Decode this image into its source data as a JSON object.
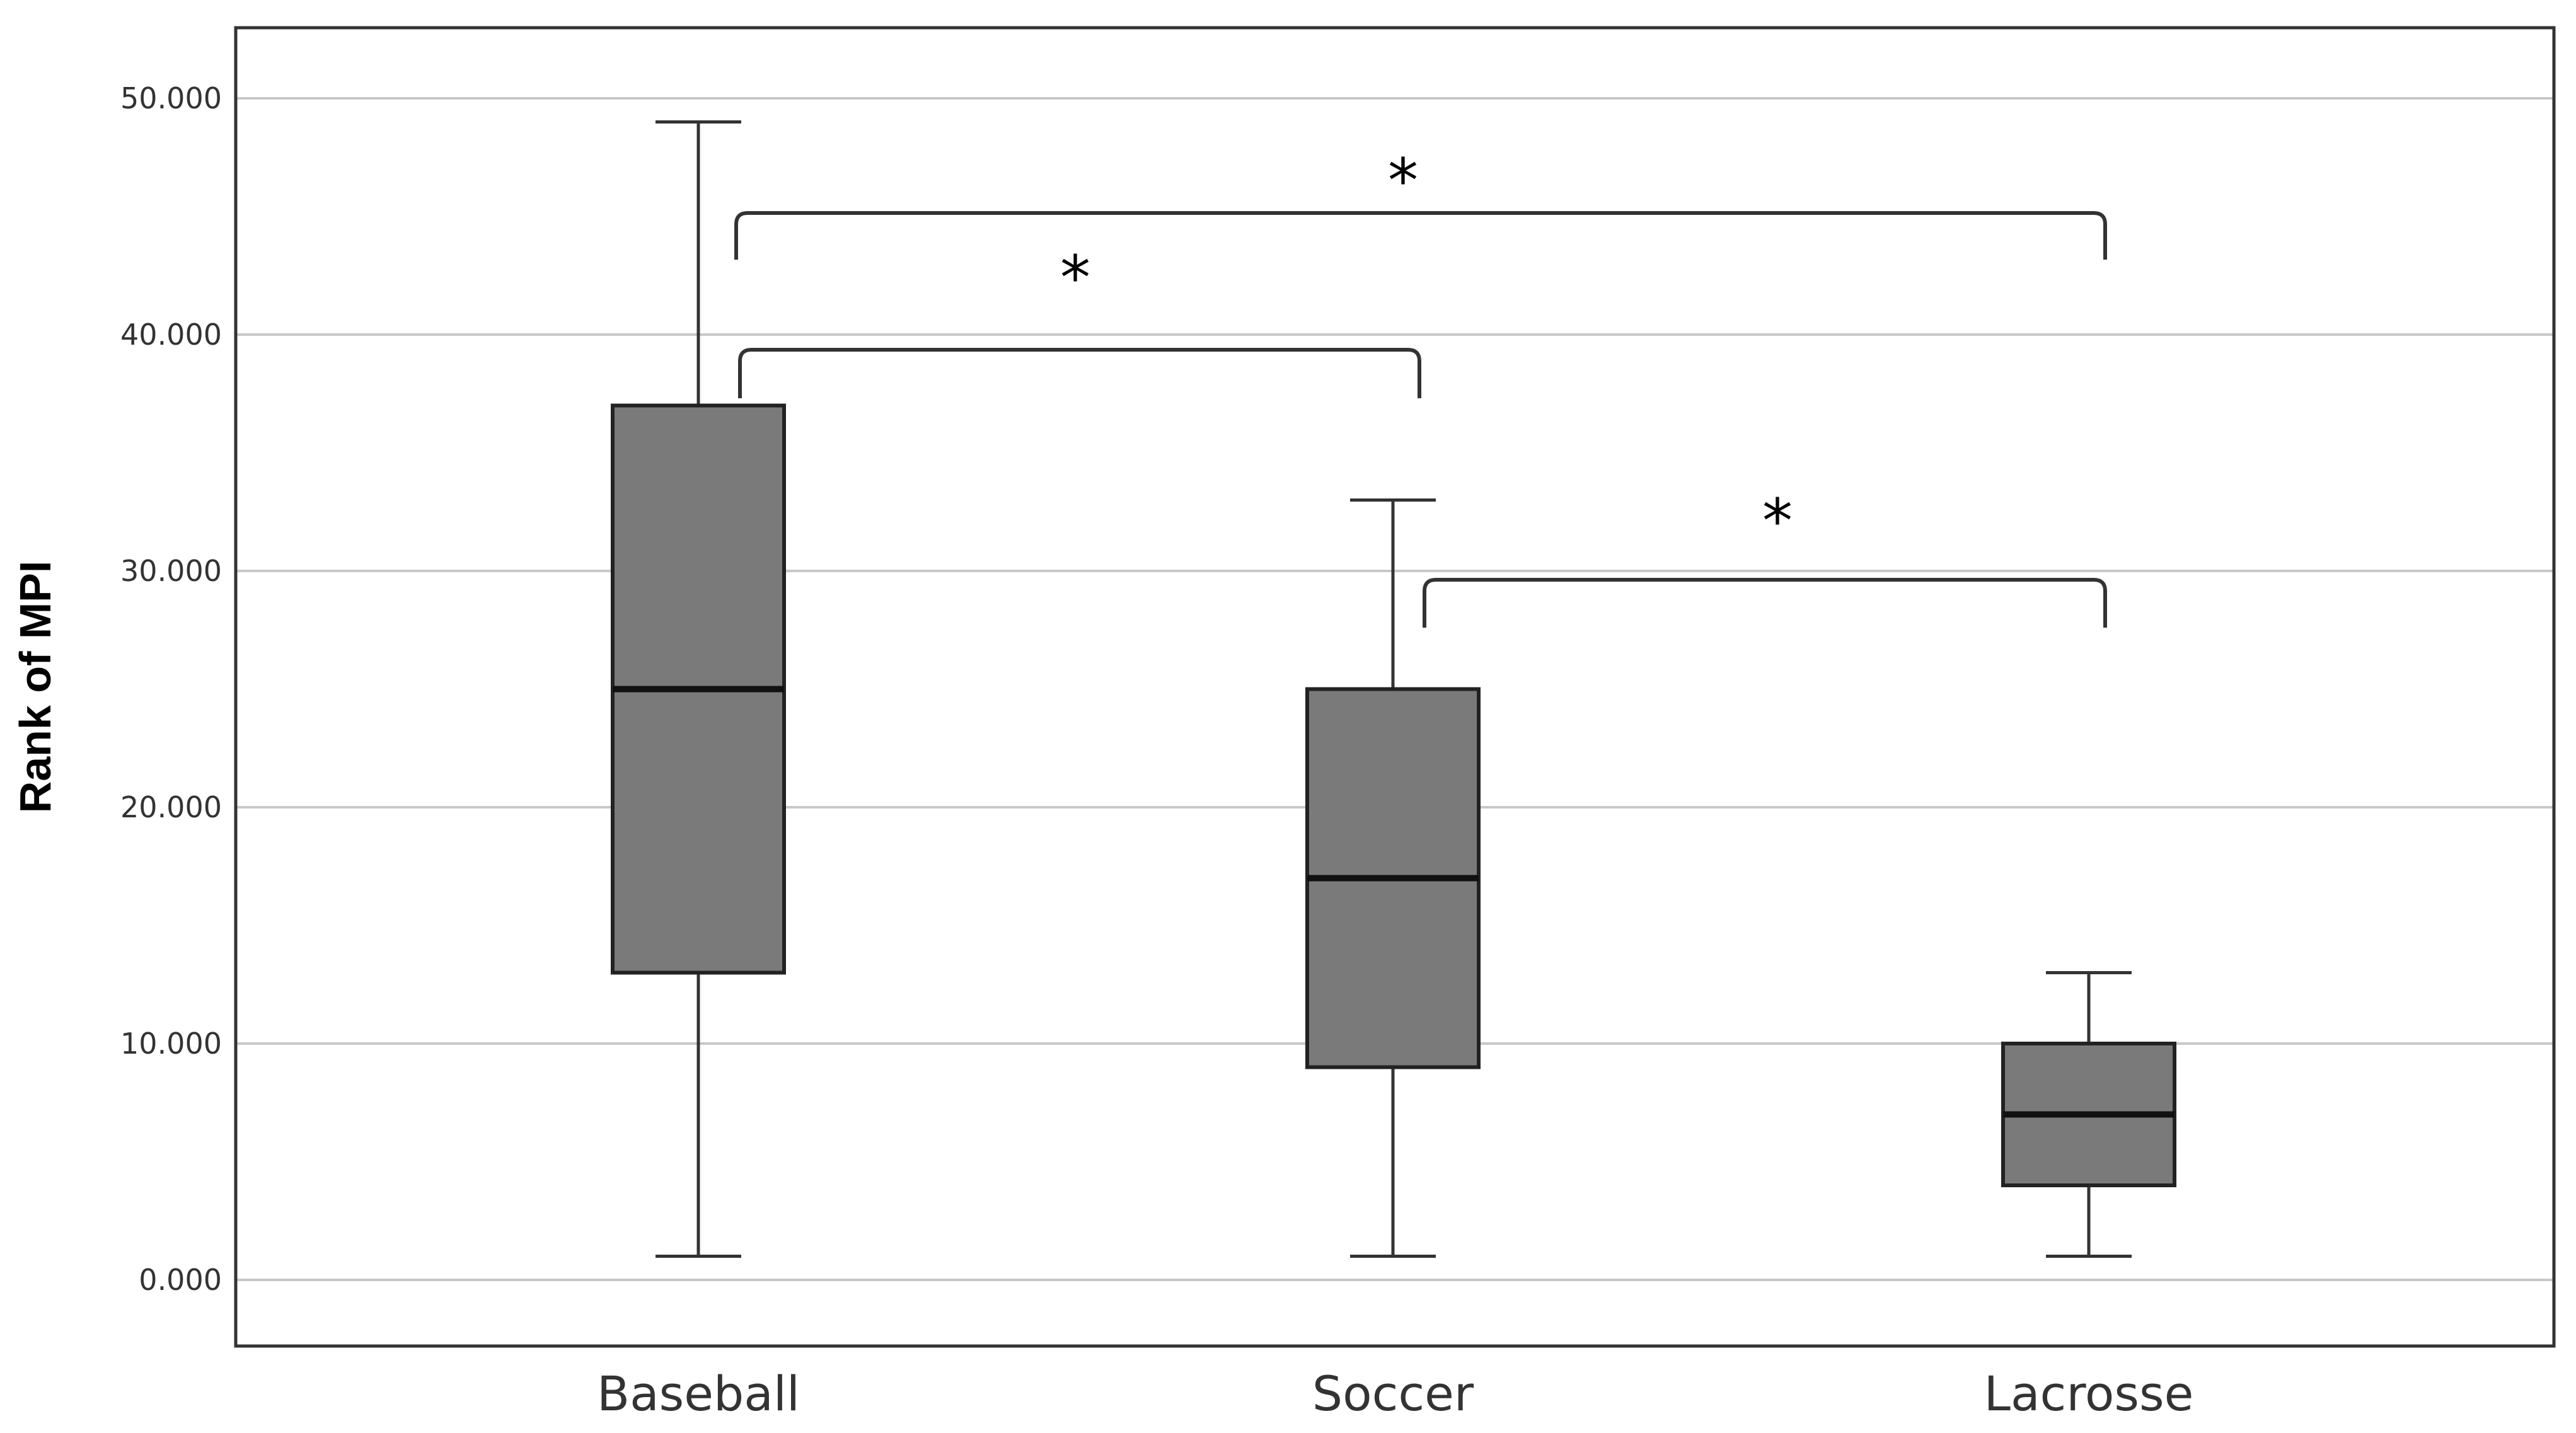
{
  "chart_data": {
    "type": "box",
    "ylabel": "Rank of MPI",
    "ylim": [
      -3,
      53
    ],
    "yticks": [
      0,
      10,
      20,
      30,
      40,
      50
    ],
    "ytick_labels": [
      "0.000",
      "10.000",
      "20.000",
      "30.000",
      "40.000",
      "50.000"
    ],
    "grid": true,
    "categories": [
      "Baseball",
      "Soccer",
      "Lacrosse"
    ],
    "boxes": [
      {
        "category": "Baseball",
        "min": 1,
        "q1": 13,
        "median": 25,
        "q3": 37,
        "max": 49
      },
      {
        "category": "Soccer",
        "min": 1,
        "q1": 9,
        "median": 17,
        "q3": 25,
        "max": 33
      },
      {
        "category": "Lacrosse",
        "min": 1,
        "q1": 4,
        "median": 7,
        "q3": 10,
        "max": 13
      }
    ],
    "significance": [
      {
        "from": "Baseball",
        "to": "Lacrosse",
        "label": "*"
      },
      {
        "from": "Baseball",
        "to": "Soccer",
        "label": "*"
      },
      {
        "from": "Soccer",
        "to": "Lacrosse",
        "label": "*"
      }
    ],
    "colors": {
      "box_fill": "#7a7a7a",
      "grid": "#c8c8c8",
      "frame": "#333333"
    }
  }
}
